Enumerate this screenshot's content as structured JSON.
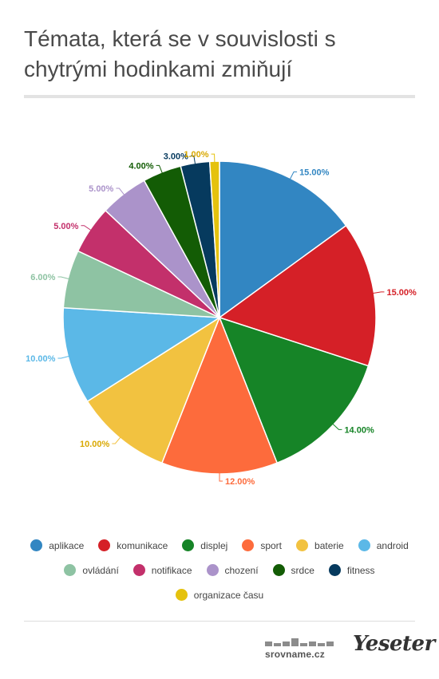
{
  "title": "Témata, která se v souvislosti s chytrými hodinkami zmiňují",
  "chart_data": {
    "type": "pie",
    "title": "Témata, která se v souvislosti s chytrými hodinkami zmiňují",
    "slices": [
      {
        "name": "aplikace",
        "value": 15.0,
        "label": "15.00%",
        "color": "#3286c2"
      },
      {
        "name": "komunikace",
        "value": 15.0,
        "label": "15.00%",
        "color": "#d52027"
      },
      {
        "name": "displej",
        "value": 14.0,
        "label": "14.00%",
        "color": "#168427"
      },
      {
        "name": "sport",
        "value": 12.0,
        "label": "12.00%",
        "color": "#fd6b3c"
      },
      {
        "name": "baterie",
        "value": 10.0,
        "label": "10.00%",
        "color": "#f2c240"
      },
      {
        "name": "android",
        "value": 10.0,
        "label": "10.00%",
        "color": "#5bb8e7"
      },
      {
        "name": "ovládání",
        "value": 6.0,
        "label": "6.00%",
        "color": "#8ec3a3"
      },
      {
        "name": "notifikace",
        "value": 5.0,
        "label": "5.00%",
        "color": "#c3306b"
      },
      {
        "name": "chození",
        "value": 5.0,
        "label": "5.00%",
        "color": "#ab93ca"
      },
      {
        "name": "srdce",
        "value": 4.0,
        "label": "4.00%",
        "color": "#135c05"
      },
      {
        "name": "fitness",
        "value": 3.0,
        "label": "3.00%",
        "color": "#063a5e"
      },
      {
        "name": "organizace času",
        "value": 1.0,
        "label": "1.00%",
        "color": "#e5c20e"
      }
    ],
    "legend_position": "bottom"
  },
  "legend_rows": [
    [
      0,
      1,
      2,
      3,
      4,
      5
    ],
    [
      6,
      7,
      8,
      9,
      10
    ],
    [
      11
    ]
  ],
  "footer": {
    "brand_left": "srovname.cz",
    "brand_right": "Yeseter"
  }
}
